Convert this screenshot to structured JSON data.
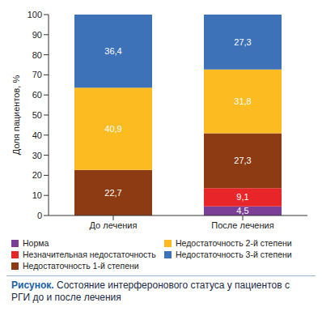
{
  "chart_data": {
    "type": "bar",
    "stacked": true,
    "caption_label": "Рисунок.",
    "caption": "Состояние интерферонового статуса у пациентов с РГИ до и после лечения",
    "y_label": "Доля пациентов, %",
    "categories": [
      "До лечения",
      "После лечения"
    ],
    "series": [
      {
        "name": "Норма",
        "color": "#7b3f98",
        "values": [
          null,
          4.5
        ],
        "value_labels": [
          null,
          "4,5"
        ]
      },
      {
        "name": "Незначительная недостаточность",
        "color": "#e8262a",
        "values": [
          null,
          9.1
        ],
        "value_labels": [
          null,
          "9,1"
        ]
      },
      {
        "name": "Недостаточность 1-й степени",
        "color": "#8c3b12",
        "values": [
          22.7,
          27.3
        ],
        "value_labels": [
          "22,7",
          "27,3"
        ]
      },
      {
        "name": "Недостаточность 2-й степени",
        "color": "#fbbb21",
        "values": [
          40.9,
          31.8
        ],
        "value_labels": [
          "40,9",
          "31,8"
        ]
      },
      {
        "name": "Недостаточность 3-й степени",
        "color": "#3d72b8",
        "values": [
          36.4,
          27.3
        ],
        "value_labels": [
          "36,4",
          "27,3"
        ]
      }
    ],
    "ylim": [
      0,
      100
    ],
    "yticks": [
      0,
      10,
      20,
      30,
      40,
      50,
      60,
      70,
      80,
      90,
      100
    ],
    "grid": false,
    "data_labels": true,
    "legend": "bottom"
  }
}
